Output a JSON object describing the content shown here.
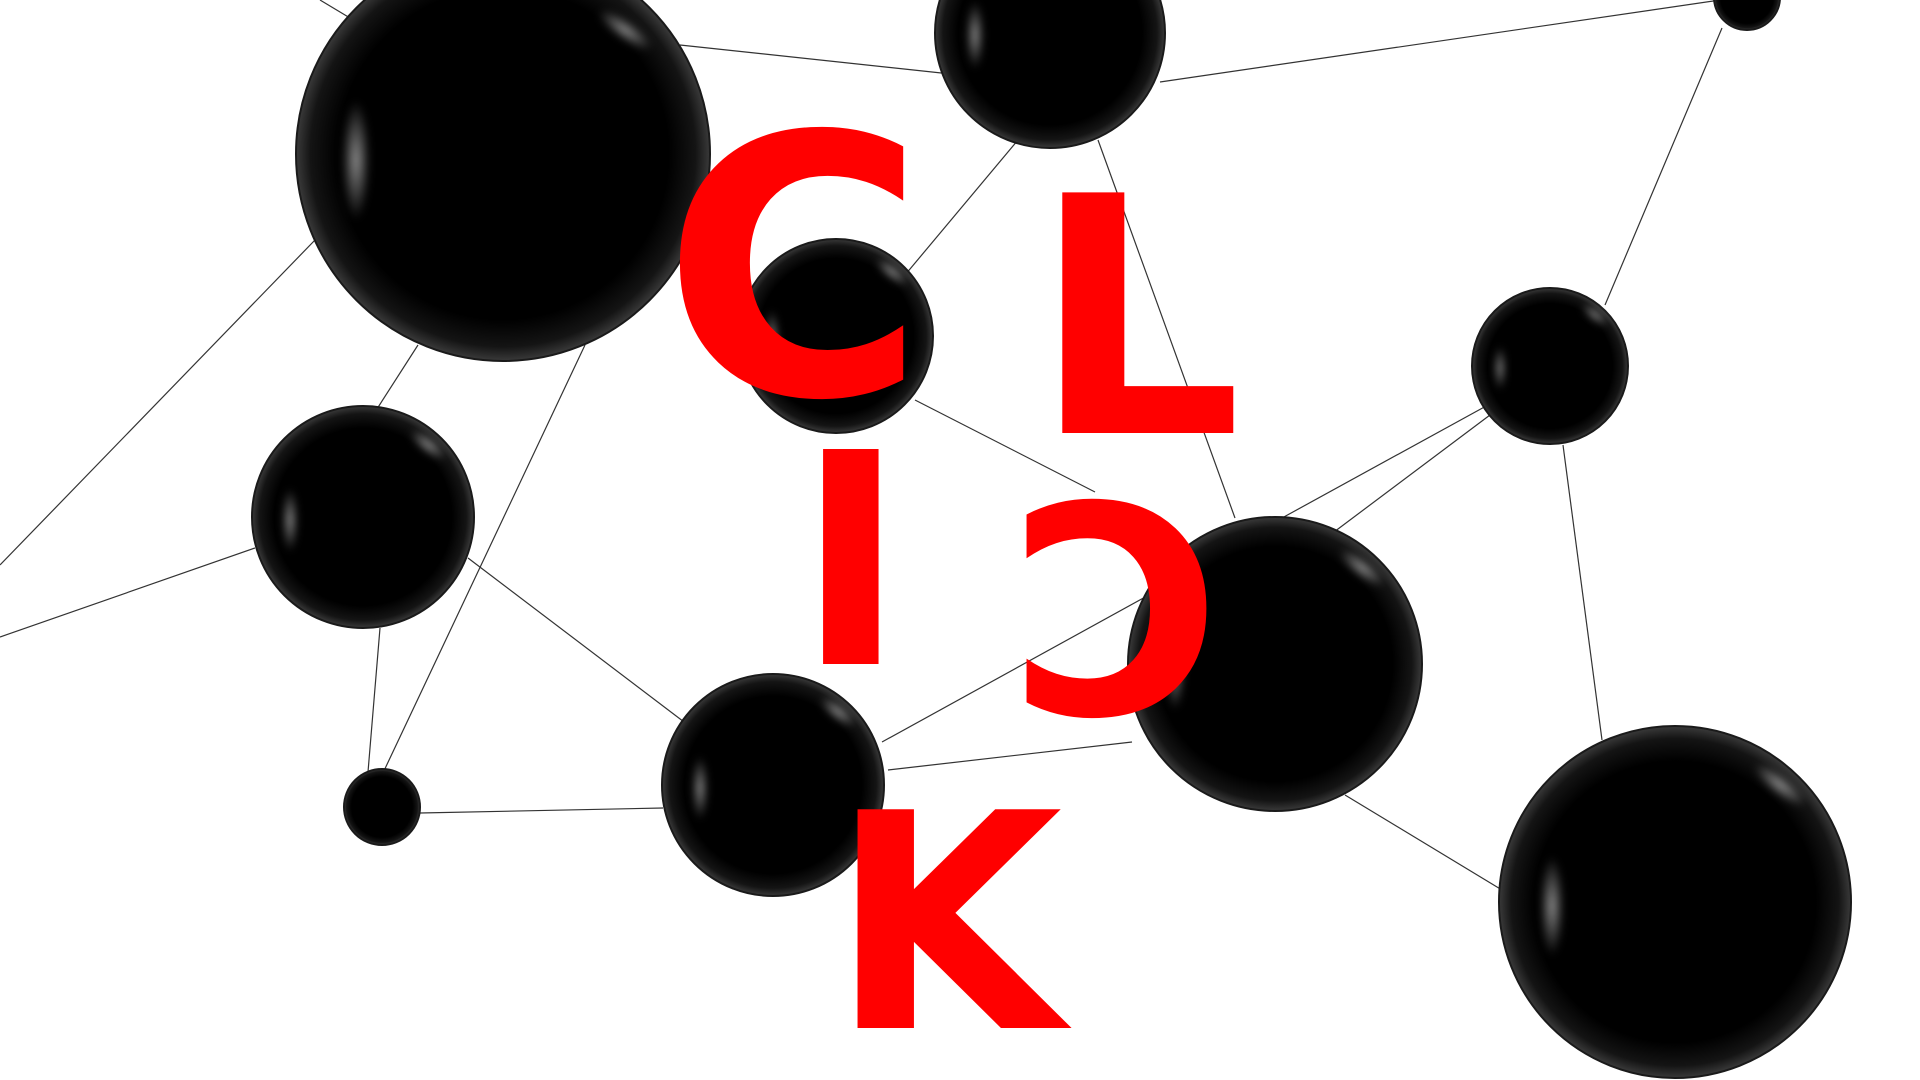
{
  "background_color": "#ffffff",
  "accent_color": "#ff0000",
  "sphere_color": "#000000",
  "line_color": "#333333",
  "word": {
    "letter_1": "C",
    "letter_2": "L",
    "letter_3": "I",
    "letter_4": "C",
    "letter_5": "K"
  }
}
